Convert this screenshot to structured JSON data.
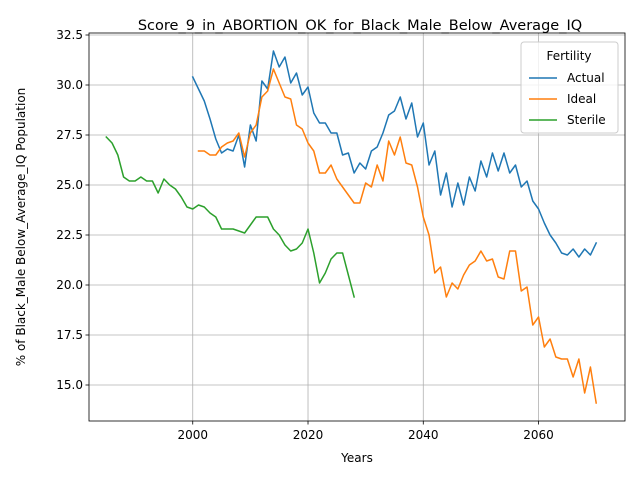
{
  "chart_data": {
    "type": "line",
    "title": "Score_9_in_ABORTION_OK_for_Black_Male_Below_Average_IQ",
    "xlabel": "Years",
    "ylabel": "% of Black_Male Below_Average_IQ Population",
    "xlim": [
      1982,
      2075
    ],
    "ylim": [
      13.2,
      32.6
    ],
    "xticks": [
      2000,
      2020,
      2040,
      2060
    ],
    "yticks": [
      15.0,
      17.5,
      20.0,
      22.5,
      25.0,
      27.5,
      30.0,
      32.5
    ],
    "ytick_labels": [
      "15.0",
      "17.5",
      "20.0",
      "22.5",
      "25.0",
      "27.5",
      "30.0",
      "32.5"
    ],
    "grid": true,
    "legend": {
      "title": "Fertility",
      "position": "top-right"
    },
    "series": [
      {
        "name": "Actual",
        "color": "#1f77b4",
        "x": [
          2000,
          2001,
          2002,
          2003,
          2004,
          2005,
          2006,
          2007,
          2008,
          2009,
          2010,
          2011,
          2012,
          2013,
          2014,
          2015,
          2016,
          2017,
          2018,
          2019,
          2020,
          2021,
          2022,
          2023,
          2024,
          2025,
          2026,
          2027,
          2028,
          2029,
          2030,
          2031,
          2032,
          2033,
          2034,
          2035,
          2036,
          2037,
          2038,
          2039,
          2040,
          2041,
          2042,
          2043,
          2044,
          2045,
          2046,
          2047,
          2048,
          2049,
          2050,
          2051,
          2052,
          2053,
          2054,
          2055,
          2056,
          2057,
          2058,
          2059,
          2060,
          2061,
          2062,
          2063,
          2064,
          2065,
          2066,
          2067,
          2068,
          2069,
          2070
        ],
        "y": [
          30.4,
          29.8,
          29.2,
          28.3,
          27.3,
          26.6,
          26.8,
          26.7,
          27.5,
          25.9,
          28.0,
          27.2,
          30.2,
          29.8,
          31.7,
          30.9,
          31.4,
          30.1,
          30.6,
          29.5,
          29.9,
          28.6,
          28.1,
          28.1,
          27.6,
          27.6,
          26.5,
          26.6,
          25.6,
          26.1,
          25.8,
          26.7,
          26.9,
          27.6,
          28.5,
          28.7,
          29.4,
          28.3,
          29.1,
          27.4,
          28.1,
          26.0,
          26.7,
          24.5,
          25.6,
          23.9,
          25.1,
          24.0,
          25.4,
          24.7,
          26.2,
          25.4,
          26.6,
          25.7,
          26.6,
          25.6,
          26.0,
          24.9,
          25.2,
          24.2,
          23.8,
          23.1,
          22.5,
          22.1,
          21.6,
          21.5,
          21.8,
          21.4,
          21.8,
          21.5,
          22.1
        ]
      },
      {
        "name": "Ideal",
        "color": "#ff7f0e",
        "x": [
          2001,
          2002,
          2003,
          2004,
          2005,
          2006,
          2007,
          2008,
          2009,
          2010,
          2011,
          2012,
          2013,
          2014,
          2015,
          2016,
          2017,
          2018,
          2019,
          2020,
          2021,
          2022,
          2023,
          2024,
          2025,
          2026,
          2027,
          2028,
          2029,
          2030,
          2031,
          2032,
          2033,
          2034,
          2035,
          2036,
          2037,
          2038,
          2039,
          2040,
          2041,
          2042,
          2043,
          2044,
          2045,
          2046,
          2047,
          2048,
          2049,
          2050,
          2051,
          2052,
          2053,
          2054,
          2055,
          2056,
          2057,
          2058,
          2059,
          2060,
          2061,
          2062,
          2063,
          2064,
          2065,
          2066,
          2067,
          2068,
          2069,
          2070
        ],
        "y": [
          26.7,
          26.7,
          26.5,
          26.5,
          26.9,
          27.1,
          27.2,
          27.6,
          26.4,
          27.6,
          28.0,
          29.4,
          29.7,
          30.8,
          30.1,
          29.4,
          29.3,
          28.0,
          27.8,
          27.1,
          26.7,
          25.6,
          25.6,
          26.0,
          25.3,
          24.9,
          24.5,
          24.1,
          24.1,
          25.1,
          24.9,
          26.0,
          25.2,
          27.2,
          26.5,
          27.4,
          26.1,
          26.0,
          24.9,
          23.4,
          22.5,
          20.6,
          20.9,
          19.4,
          20.1,
          19.8,
          20.5,
          21.0,
          21.2,
          21.7,
          21.2,
          21.3,
          20.4,
          20.3,
          21.7,
          21.7,
          19.7,
          19.9,
          18.0,
          18.4,
          16.9,
          17.3,
          16.4,
          16.3,
          16.3,
          15.4,
          16.3,
          14.6,
          15.9,
          14.1
        ]
      },
      {
        "name": "Sterile",
        "color": "#2ca02c",
        "x": [
          1985,
          1986,
          1987,
          1988,
          1989,
          1990,
          1991,
          1992,
          1993,
          1994,
          1995,
          1996,
          1997,
          1998,
          1999,
          2000,
          2001,
          2002,
          2003,
          2004,
          2005,
          2006,
          2007,
          2008,
          2009,
          2010,
          2011,
          2012,
          2013,
          2014,
          2015,
          2016,
          2017,
          2018,
          2019,
          2020,
          2021,
          2022,
          2023,
          2024,
          2025,
          2026,
          2027,
          2028
        ],
        "y": [
          27.4,
          27.1,
          26.5,
          25.4,
          25.2,
          25.2,
          25.4,
          25.2,
          25.2,
          24.6,
          25.3,
          25.0,
          24.8,
          24.4,
          23.9,
          23.8,
          24.0,
          23.9,
          23.6,
          23.4,
          22.8,
          22.8,
          22.8,
          22.7,
          22.6,
          23.0,
          23.4,
          23.4,
          23.4,
          22.8,
          22.5,
          22.0,
          21.7,
          21.8,
          22.1,
          22.8,
          21.6,
          20.1,
          20.6,
          21.3,
          21.6,
          21.6,
          20.5,
          19.4
        ]
      }
    ]
  }
}
